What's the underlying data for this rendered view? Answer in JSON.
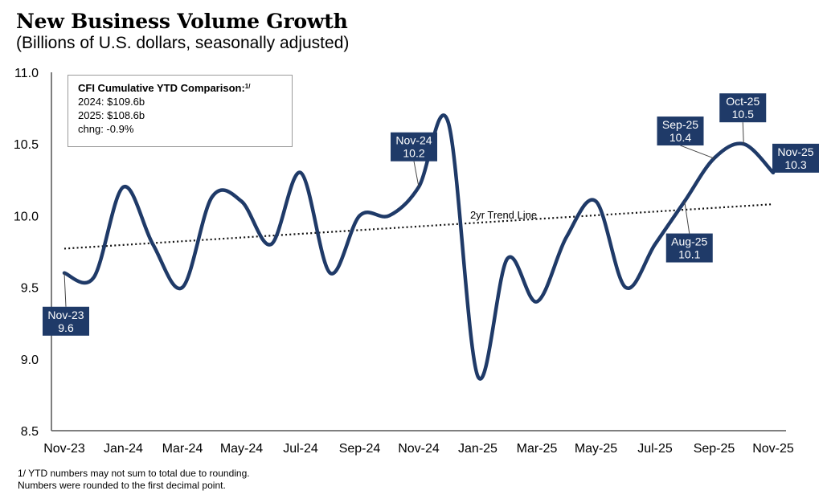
{
  "header": {
    "title": "New Business Volume Growth",
    "subtitle": "(Billions of U.S. dollars, seasonally adjusted)"
  },
  "infobox": {
    "heading": "CFI Cumulative YTD Comparison:",
    "footnote_ref": "1/",
    "lines": [
      "2024: $109.6b",
      "2025: $108.6b",
      "chng: -0.9%"
    ]
  },
  "footnotes": [
    "1/ YTD numbers may not sum to total due to rounding.",
    "Numbers were rounded to the first decimal point."
  ],
  "colors": {
    "series": "#1f3a68",
    "callout_bg": "#1f3a68",
    "callout_text": "#ffffff",
    "trend": "#111111",
    "axis": "#555555"
  },
  "chart_data": {
    "type": "line",
    "title": "New Business Volume Growth",
    "subtitle": "(Billions of U.S. dollars, seasonally adjusted)",
    "xlabel": "",
    "ylabel": "",
    "ylim": [
      8.5,
      11.0
    ],
    "yticks": [
      "11.0",
      "10.5",
      "10.0",
      "9.5",
      "9.0",
      "8.5"
    ],
    "ytick_values": [
      11.0,
      10.5,
      10.0,
      9.5,
      9.0,
      8.5
    ],
    "grid": false,
    "x": [
      "Nov-23",
      "Dec-23",
      "Jan-24",
      "Feb-24",
      "Mar-24",
      "Apr-24",
      "May-24",
      "Jun-24",
      "Jul-24",
      "Aug-24",
      "Sep-24",
      "Oct-24",
      "Nov-24",
      "Dec-24",
      "Jan-25",
      "Feb-25",
      "Mar-25",
      "Apr-25",
      "May-25",
      "Jun-25",
      "Jul-25",
      "Aug-25",
      "Sep-25",
      "Oct-25",
      "Nov-25"
    ],
    "xtick_labels": [
      "Nov-23",
      "Jan-24",
      "Mar-24",
      "May-24",
      "Jul-24",
      "Sep-24",
      "Nov-24",
      "Jan-25",
      "Mar-25",
      "May-25",
      "Jul-25",
      "Sep-25",
      "Nov-25"
    ],
    "series": [
      {
        "name": "New Business Volume",
        "values": [
          9.6,
          9.57,
          10.2,
          9.8,
          9.5,
          10.13,
          10.1,
          9.8,
          10.3,
          9.6,
          10.0,
          10.0,
          10.2,
          10.65,
          8.88,
          9.7,
          9.4,
          9.85,
          10.1,
          9.5,
          9.8,
          10.1,
          10.4,
          10.5,
          10.3
        ]
      }
    ],
    "trend_line": {
      "label": "2yr Trend Line",
      "start": 9.77,
      "end": 10.08
    },
    "callouts": [
      {
        "month": "Nov-23",
        "label": "Nov-23",
        "value": "9.6"
      },
      {
        "month": "Nov-24",
        "label": "Nov-24",
        "value": "10.2"
      },
      {
        "month": "Aug-25",
        "label": "Aug-25",
        "value": "10.1"
      },
      {
        "month": "Sep-25",
        "label": "Sep-25",
        "value": "10.4"
      },
      {
        "month": "Oct-25",
        "label": "Oct-25",
        "value": "10.5"
      },
      {
        "month": "Nov-25",
        "label": "Nov-25",
        "value": "10.3"
      }
    ]
  }
}
